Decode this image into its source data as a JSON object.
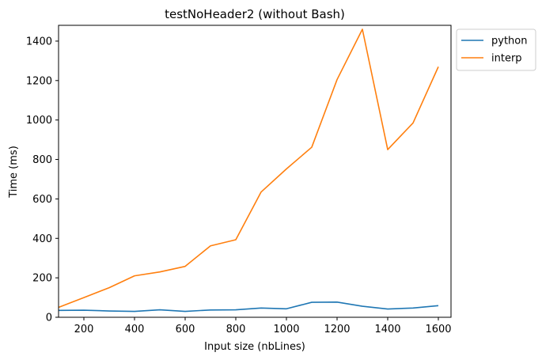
{
  "chart_data": {
    "type": "line",
    "title": "testNoHeader2 (without Bash)",
    "xlabel": "Input size (nbLines)",
    "ylabel": "Time (ms)",
    "xlim": [
      100,
      1650
    ],
    "ylim": [
      0,
      1480
    ],
    "xticks": [
      200,
      400,
      600,
      800,
      1000,
      1200,
      1400,
      1600
    ],
    "yticks": [
      0,
      200,
      400,
      600,
      800,
      1000,
      1200,
      1400
    ],
    "x": [
      100,
      200,
      300,
      400,
      500,
      600,
      700,
      800,
      900,
      1000,
      1100,
      1200,
      1300,
      1400,
      1500,
      1600
    ],
    "series": [
      {
        "name": "python",
        "color": "#1f77b4",
        "values": [
          35,
          36,
          32,
          30,
          38,
          30,
          37,
          38,
          47,
          43,
          76,
          77,
          56,
          42,
          47,
          59
        ]
      },
      {
        "name": "interp",
        "color": "#ff7f0e",
        "values": [
          50,
          100,
          150,
          210,
          230,
          258,
          362,
          393,
          635,
          752,
          862,
          1205,
          1460,
          850,
          985,
          1270
        ]
      }
    ],
    "legend": "upper-right-outside",
    "grid": false
  }
}
